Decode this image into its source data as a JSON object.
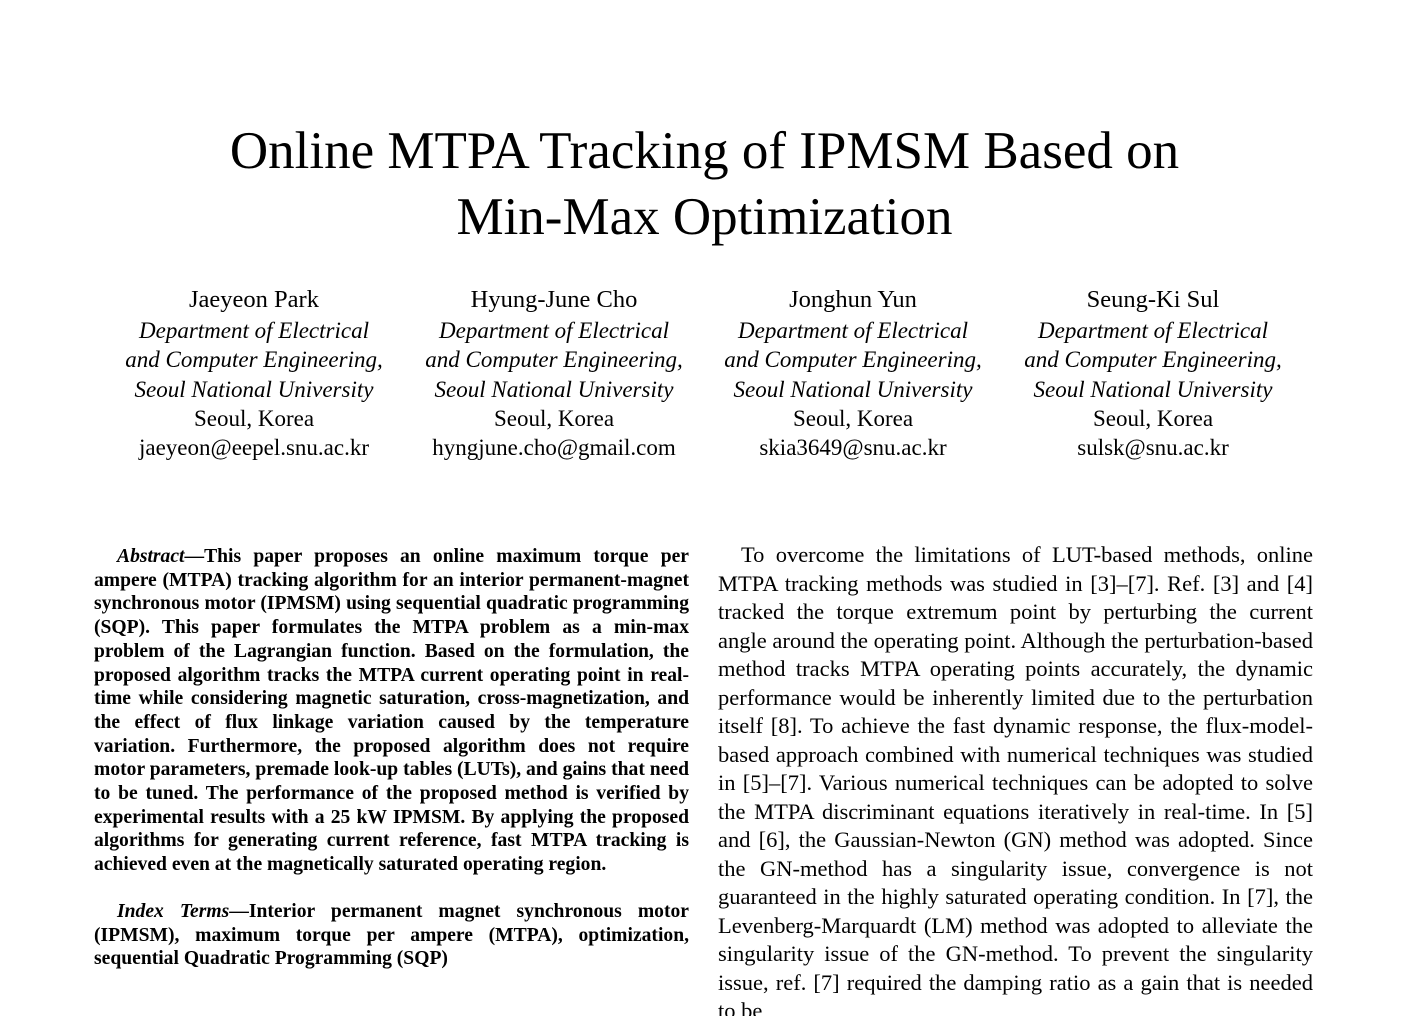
{
  "paper": {
    "title_line1": "Online MTPA Tracking of IPMSM Based on",
    "title_line2": "Min-Max Optimization",
    "authors": [
      {
        "name": "Jaeyeon Park",
        "dept1": "Department of Electrical",
        "dept2": "and Computer Engineering,",
        "univ": "Seoul National University",
        "location": "Seoul, Korea",
        "email": "jaeyeon@eepel.snu.ac.kr"
      },
      {
        "name": "Hyung-June Cho",
        "dept1": "Department of Electrical",
        "dept2": "and Computer Engineering,",
        "univ": "Seoul National University",
        "location": "Seoul, Korea",
        "email": "hyngjune.cho@gmail.com"
      },
      {
        "name": "Jonghun Yun",
        "dept1": "Department of Electrical",
        "dept2": "and Computer Engineering,",
        "univ": "Seoul National University",
        "location": "Seoul, Korea",
        "email": "skia3649@snu.ac.kr"
      },
      {
        "name": "Seung-Ki Sul",
        "dept1": "Department of Electrical",
        "dept2": "and Computer Engineering,",
        "univ": "Seoul National University",
        "location": "Seoul, Korea",
        "email": "sulsk@snu.ac.kr"
      }
    ],
    "abstract": {
      "lead": "Abstract",
      "text": "—This paper proposes an online maximum torque per ampere (MTPA) tracking algorithm for an interior permanent-magnet synchronous motor (IPMSM) using sequential quadratic programming (SQP). This paper formulates the MTPA problem as a min-max problem of the Lagrangian function. Based on the formulation, the proposed algorithm tracks the MTPA current operating point in real-time while considering magnetic saturation, cross-magnetization, and the effect of flux linkage variation caused by the temperature variation. Furthermore, the proposed algorithm does not require motor parameters, premade look-up tables (LUTs), and gains that need to be tuned. The performance of the proposed method is verified by experimental results with a 25 kW IPMSM. By applying the proposed algorithms for generating current reference, fast MTPA tracking is achieved even at the magnetically saturated operating region."
    },
    "index_terms": {
      "lead": "Index Terms",
      "text": "—Interior permanent magnet synchronous motor (IPMSM), maximum torque per ampere (MTPA), optimization, sequential Quadratic Programming (SQP)"
    },
    "right_column_text": "To overcome the limitations of LUT-based methods, online MTPA tracking methods was studied in [3]–[7]. Ref. [3] and [4] tracked the torque extremum point by perturbing the current angle around the operating point. Although the perturbation-based method tracks MTPA operating points accurately, the dynamic performance would be inherently limited due to the perturbation itself [8]. To achieve the fast dynamic response, the flux-model-based approach combined with numerical techniques was studied in [5]–[7]. Various numerical techniques can be adopted to solve the MTPA discriminant equations iteratively in real-time. In [5] and [6], the Gaussian-Newton (GN) method was adopted. Since the GN-method has a singularity issue, convergence is not guaranteed in the highly saturated operating condition. In [7], the Levenberg-Marquardt (LM) method was adopted to alleviate the singularity issue of the GN-method. To prevent the singularity issue, ref. [7] required the damping ratio as a gain that is needed to be"
  }
}
